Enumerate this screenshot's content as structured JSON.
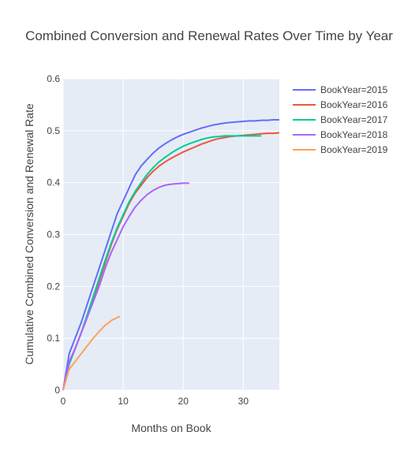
{
  "chart_data": {
    "type": "line",
    "title": "Combined Conversion and Renewal Rates Over Time by Year",
    "xlabel": "Months on Book",
    "ylabel": "Cumulative Combined Conversion and Renewal Rate",
    "xlim": [
      0,
      36
    ],
    "ylim": [
      0,
      0.6
    ],
    "xticks": [
      0,
      10,
      20,
      30
    ],
    "yticks": [
      0,
      0.1,
      0.2,
      0.3,
      0.4,
      0.5,
      0.6
    ],
    "grid": true,
    "legend_position": "top-right",
    "series": [
      {
        "name": "BookYear=2015",
        "color": "#636efa",
        "x": [
          0,
          1,
          2,
          3,
          4,
          5,
          6,
          7,
          8,
          9,
          10,
          11,
          12,
          13,
          14,
          15,
          16,
          17,
          18,
          19,
          20,
          21,
          22,
          23,
          24,
          25,
          26,
          27,
          28,
          29,
          30,
          31,
          32,
          33,
          34,
          35,
          36
        ],
        "values": [
          0,
          0.07,
          0.1,
          0.13,
          0.165,
          0.2,
          0.235,
          0.27,
          0.305,
          0.34,
          0.365,
          0.39,
          0.415,
          0.432,
          0.445,
          0.457,
          0.467,
          0.475,
          0.482,
          0.488,
          0.493,
          0.497,
          0.501,
          0.505,
          0.508,
          0.511,
          0.513,
          0.515,
          0.516,
          0.517,
          0.518,
          0.519,
          0.519,
          0.52,
          0.52,
          0.521,
          0.521
        ]
      },
      {
        "name": "BookYear=2016",
        "color": "#ef553b",
        "x": [
          0,
          1,
          2,
          3,
          4,
          5,
          6,
          7,
          8,
          9,
          10,
          11,
          12,
          13,
          14,
          15,
          16,
          17,
          18,
          19,
          20,
          21,
          22,
          23,
          24,
          25,
          26,
          27,
          28,
          29,
          30,
          31,
          32,
          33,
          34,
          35,
          36
        ],
        "values": [
          0,
          0.05,
          0.08,
          0.11,
          0.14,
          0.175,
          0.21,
          0.245,
          0.28,
          0.31,
          0.335,
          0.36,
          0.38,
          0.395,
          0.41,
          0.422,
          0.432,
          0.44,
          0.447,
          0.453,
          0.459,
          0.464,
          0.469,
          0.474,
          0.478,
          0.482,
          0.485,
          0.487,
          0.489,
          0.49,
          0.491,
          0.492,
          0.493,
          0.494,
          0.495,
          0.495,
          0.496
        ]
      },
      {
        "name": "BookYear=2017",
        "color": "#00cc96",
        "x": [
          0,
          1,
          2,
          3,
          4,
          5,
          6,
          7,
          8,
          9,
          10,
          11,
          12,
          13,
          14,
          15,
          16,
          17,
          18,
          19,
          20,
          21,
          22,
          23,
          24,
          25,
          26,
          27,
          28,
          29,
          30,
          31,
          32,
          33
        ],
        "values": [
          0,
          0.05,
          0.08,
          0.11,
          0.145,
          0.18,
          0.215,
          0.25,
          0.283,
          0.313,
          0.338,
          0.363,
          0.383,
          0.4,
          0.416,
          0.429,
          0.44,
          0.449,
          0.457,
          0.464,
          0.47,
          0.475,
          0.479,
          0.483,
          0.486,
          0.488,
          0.489,
          0.49,
          0.49,
          0.49,
          0.49,
          0.49,
          0.49,
          0.49
        ]
      },
      {
        "name": "BookYear=2018",
        "color": "#ab63fa",
        "x": [
          0,
          1,
          2,
          3,
          4,
          5,
          6,
          7,
          8,
          9,
          10,
          11,
          12,
          13,
          14,
          15,
          16,
          17,
          18,
          19,
          20,
          21
        ],
        "values": [
          0,
          0.055,
          0.08,
          0.11,
          0.14,
          0.17,
          0.2,
          0.235,
          0.265,
          0.29,
          0.315,
          0.335,
          0.353,
          0.366,
          0.377,
          0.385,
          0.391,
          0.395,
          0.397,
          0.398,
          0.399,
          0.399
        ]
      },
      {
        "name": "BookYear=2019",
        "color": "#ffa15a",
        "x": [
          0,
          1,
          2,
          3,
          4,
          5,
          6,
          7,
          8,
          9,
          9.5
        ],
        "values": [
          0,
          0.04,
          0.055,
          0.07,
          0.085,
          0.1,
          0.113,
          0.125,
          0.134,
          0.14,
          0.142
        ]
      }
    ]
  }
}
